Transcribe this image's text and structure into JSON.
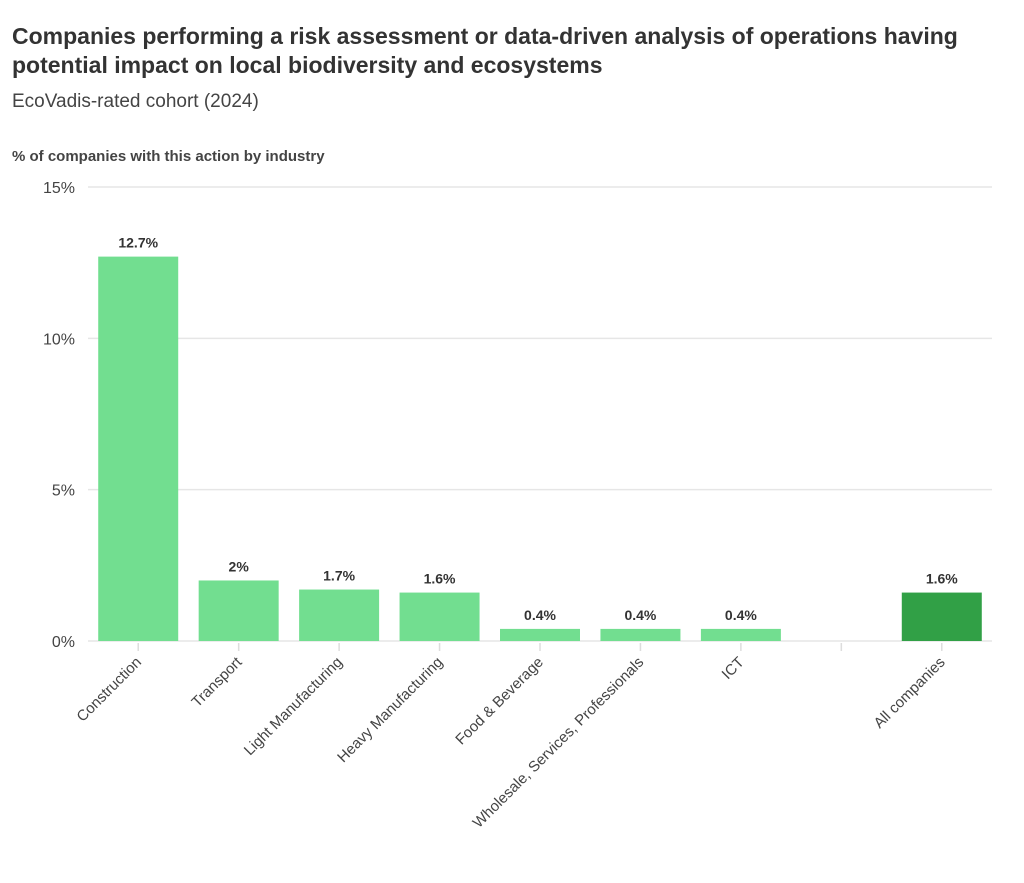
{
  "chart_data": {
    "type": "bar",
    "title": "Companies performing a risk assessment or data-driven analysis of operations having potential impact on local biodiversity and ecosystems",
    "subtitle": "EcoVadis-rated cohort (2024)",
    "ylabel": "% of companies with this action by industry",
    "xlabel": "",
    "categories": [
      "Construction",
      "Transport",
      "Light Manufacturing",
      "Heavy Manufacturing",
      "Food & Beverage",
      "Wholesale, Services, Professionals",
      "ICT",
      "",
      "All companies"
    ],
    "values": [
      12.7,
      2,
      1.7,
      1.6,
      0.4,
      0.4,
      0.4,
      null,
      1.6
    ],
    "data_labels": [
      "12.7%",
      "2%",
      "1.7%",
      "1.6%",
      "0.4%",
      "0.4%",
      "0.4%",
      "",
      "1.6%"
    ],
    "highlight_index": 8,
    "ylim": [
      0,
      15
    ],
    "yticks": [
      0,
      5,
      10,
      15
    ],
    "ytick_labels": [
      "0%",
      "5%",
      "10%",
      "15%"
    ],
    "grid": true,
    "colors": {
      "bar": "#72de90",
      "highlight": "#31a046",
      "grid": "#e6e6e6"
    }
  }
}
